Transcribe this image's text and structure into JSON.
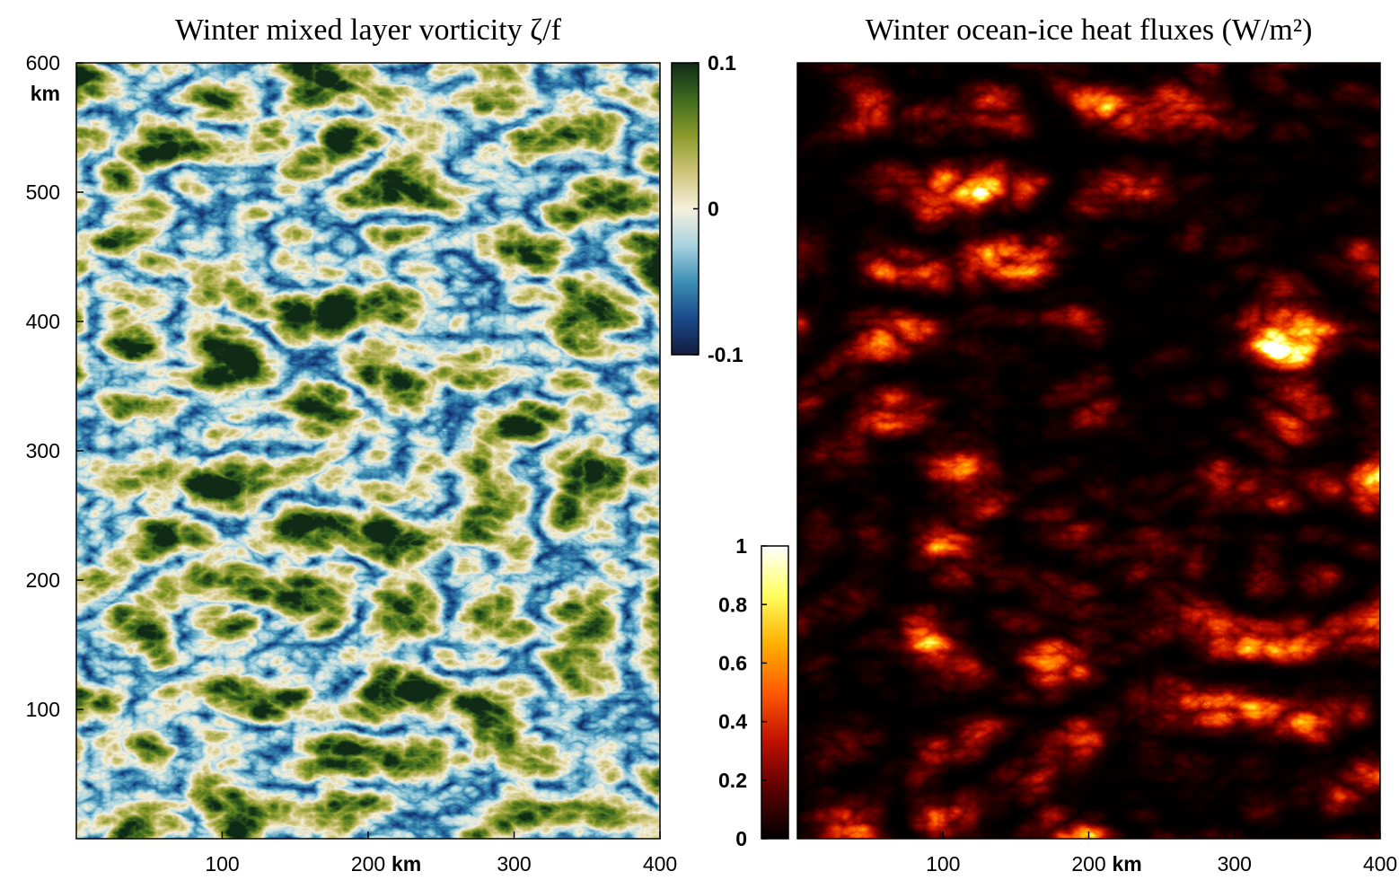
{
  "chart_data": [
    {
      "type": "heatmap",
      "title": "Winter mixed layer vorticity ζ/f",
      "xlabel": "km",
      "ylabel": "km",
      "xlim": [
        0,
        400
      ],
      "xticks": [
        100,
        200,
        300,
        400
      ],
      "ylim": [
        0,
        600
      ],
      "yticks": [
        100,
        200,
        300,
        400,
        500,
        600
      ],
      "clim": [
        -0.1,
        0.1
      ],
      "cticks": [
        -0.1,
        0,
        0.1
      ],
      "colormap": [
        "#141c3f",
        "#1a4a8a",
        "#3c8fb5",
        "#a8d3df",
        "#f5f0dc",
        "#cfc47a",
        "#8b9a2a",
        "#3f6b1f",
        "#0f2a16"
      ]
    },
    {
      "type": "heatmap",
      "title": "Winter ocean-ice heat fluxes (W/m²)",
      "xlabel": "km",
      "xlim": [
        0,
        400
      ],
      "xticks": [
        100,
        200,
        300,
        400
      ],
      "ylim": [
        0,
        600
      ],
      "clim": [
        0,
        1
      ],
      "cticks": [
        0,
        0.2,
        0.4,
        0.6,
        0.8,
        1
      ],
      "colormap": [
        "#000000",
        "#5a0000",
        "#c01000",
        "#ff5a00",
        "#ffb000",
        "#ffff60",
        "#ffffff"
      ]
    }
  ]
}
